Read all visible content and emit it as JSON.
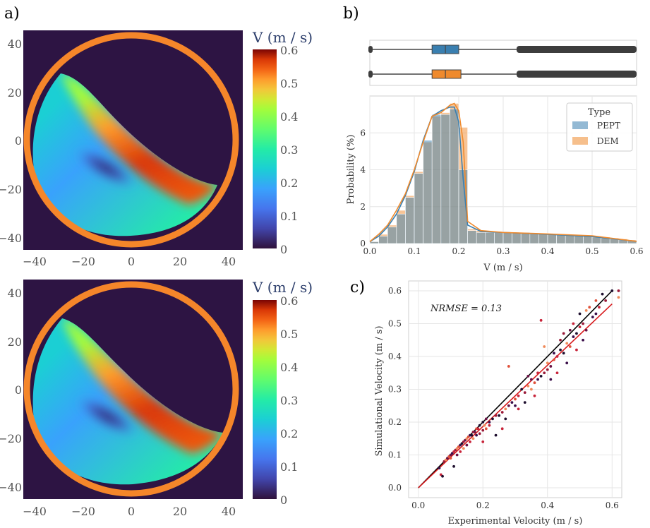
{
  "panel_labels": {
    "a": "a)",
    "b": "b)",
    "c": "c)"
  },
  "colors": {
    "pept": "#3a7fb0",
    "dem": "#ef8a2d",
    "ring": "#f5862a",
    "background": "#2d1443",
    "fit_red": "#d7191c",
    "identity_black": "#000000"
  },
  "chart_data": [
    {
      "type": "heatmap",
      "name": "PEPT velocity field (top map)",
      "x_ticks": [
        "−40",
        "−20",
        "0",
        "20",
        "40"
      ],
      "y_ticks": [
        "40",
        "20",
        "0",
        "−20",
        "−40"
      ],
      "xlim": [
        -45,
        45
      ],
      "ylim": [
        -45,
        45
      ],
      "colorbar": {
        "label": "V (m / s)",
        "range": [
          0,
          0.6
        ],
        "ticks": [
          "0.6",
          "0.5",
          "0.4",
          "0.3",
          "0.2",
          "0.1",
          "0"
        ]
      }
    },
    {
      "type": "heatmap",
      "name": "DEM velocity field (bottom map)",
      "x_ticks": [
        "−40",
        "−20",
        "0",
        "20",
        "40"
      ],
      "y_ticks": [
        "40",
        "20",
        "0",
        "−20",
        "−40"
      ],
      "xlim": [
        -45,
        45
      ],
      "ylim": [
        -45,
        45
      ],
      "colorbar": {
        "label": "V (m / s)",
        "range": [
          0,
          0.6
        ],
        "ticks": [
          "0.6",
          "0.5",
          "0.4",
          "0.3",
          "0.2",
          "0.1",
          "0"
        ]
      }
    },
    {
      "type": "bar",
      "name": "Velocity distribution histogram",
      "xlabel": "V (m / s)",
      "ylabel": "Probability (%)",
      "xlim": [
        0,
        0.6
      ],
      "ylim": [
        0,
        8
      ],
      "x_ticks": [
        "0.0",
        "0.1",
        "0.2",
        "0.3",
        "0.4",
        "0.5",
        "0.6"
      ],
      "y_ticks": [
        "0",
        "2",
        "4",
        "6"
      ],
      "bin_width": 0.02,
      "bin_starts": [
        0.0,
        0.02,
        0.04,
        0.06,
        0.08,
        0.1,
        0.12,
        0.14,
        0.16,
        0.18,
        0.2,
        0.22,
        0.24,
        0.26,
        0.28,
        0.3,
        0.32,
        0.34,
        0.36,
        0.38,
        0.4,
        0.42,
        0.44,
        0.46,
        0.48,
        0.5,
        0.52,
        0.54,
        0.56,
        0.58
      ],
      "series": [
        {
          "name": "PEPT",
          "values": [
            0.1,
            0.4,
            0.9,
            1.6,
            2.5,
            3.8,
            5.6,
            7.0,
            7.0,
            7.3,
            4.0,
            0.7,
            0.6,
            0.6,
            0.6,
            0.6,
            0.6,
            0.6,
            0.55,
            0.55,
            0.5,
            0.5,
            0.45,
            0.45,
            0.4,
            0.35,
            0.3,
            0.25,
            0.2,
            0.15
          ]
        },
        {
          "name": "DEM",
          "values": [
            0.1,
            0.5,
            1.0,
            1.8,
            2.6,
            3.9,
            5.5,
            6.9,
            7.1,
            7.6,
            6.3,
            0.8,
            0.7,
            0.6,
            0.6,
            0.6,
            0.6,
            0.55,
            0.55,
            0.55,
            0.5,
            0.5,
            0.45,
            0.45,
            0.4,
            0.4,
            0.35,
            0.3,
            0.25,
            0.2
          ]
        }
      ],
      "kde": [
        {
          "name": "PEPT",
          "x": [
            0.0,
            0.02,
            0.04,
            0.06,
            0.08,
            0.1,
            0.12,
            0.14,
            0.16,
            0.18,
            0.19,
            0.2,
            0.21,
            0.22,
            0.25,
            0.3,
            0.4,
            0.5,
            0.6
          ],
          "y": [
            0.1,
            0.4,
            0.9,
            1.6,
            2.6,
            3.9,
            5.6,
            6.9,
            7.2,
            7.4,
            7.4,
            6.6,
            3.5,
            1.0,
            0.65,
            0.6,
            0.5,
            0.38,
            0.12
          ]
        },
        {
          "name": "DEM",
          "x": [
            0.0,
            0.02,
            0.04,
            0.06,
            0.08,
            0.1,
            0.12,
            0.14,
            0.16,
            0.18,
            0.19,
            0.2,
            0.21,
            0.22,
            0.25,
            0.3,
            0.4,
            0.5,
            0.6
          ],
          "y": [
            0.1,
            0.5,
            1.0,
            1.8,
            2.7,
            4.0,
            5.5,
            6.9,
            7.1,
            7.5,
            7.6,
            7.2,
            5.5,
            1.2,
            0.7,
            0.6,
            0.52,
            0.42,
            0.12
          ]
        }
      ],
      "legend": {
        "title": "Type",
        "entries": [
          "PEPT",
          "DEM"
        ],
        "placement": "top-right"
      },
      "boxplots": [
        {
          "name": "PEPT",
          "q1": 0.14,
          "median": 0.17,
          "q3": 0.2,
          "whisker_low": 0.0,
          "whisker_high": 0.33,
          "outliers_from": 0.33,
          "outliers_to": 0.6
        },
        {
          "name": "DEM",
          "q1": 0.14,
          "median": 0.17,
          "q3": 0.205,
          "whisker_low": 0.0,
          "whisker_high": 0.33,
          "outliers_from": 0.33,
          "outliers_to": 0.6
        }
      ]
    },
    {
      "type": "scatter",
      "name": "Simulational vs experimental velocity",
      "xlabel": "Experimental Velocity (m / s)",
      "ylabel": "Simulational Velocity (m / s)",
      "xlim": [
        -0.03,
        0.63
      ],
      "ylim": [
        -0.03,
        0.63
      ],
      "x_ticks": [
        "0.0",
        "0.2",
        "0.4",
        "0.6"
      ],
      "y_ticks": [
        "0.0",
        "0.1",
        "0.2",
        "0.3",
        "0.4",
        "0.5",
        "0.6"
      ],
      "annotation": "NRMSE = 0.13",
      "identity_line": {
        "x": [
          0.0,
          0.6
        ],
        "y": [
          0.0,
          0.6
        ]
      },
      "fit_line": {
        "x": [
          0.0,
          0.6
        ],
        "y": [
          0.0,
          0.56
        ]
      },
      "points": [
        [
          0.065,
          0.06
        ],
        [
          0.07,
          0.04
        ],
        [
          0.075,
          0.035
        ],
        [
          0.08,
          0.08
        ],
        [
          0.085,
          0.085
        ],
        [
          0.09,
          0.09
        ],
        [
          0.095,
          0.095
        ],
        [
          0.1,
          0.1
        ],
        [
          0.1,
          0.09
        ],
        [
          0.105,
          0.105
        ],
        [
          0.11,
          0.11
        ],
        [
          0.11,
          0.065
        ],
        [
          0.115,
          0.115
        ],
        [
          0.12,
          0.12
        ],
        [
          0.12,
          0.1
        ],
        [
          0.125,
          0.125
        ],
        [
          0.13,
          0.13
        ],
        [
          0.13,
          0.11
        ],
        [
          0.135,
          0.135
        ],
        [
          0.14,
          0.14
        ],
        [
          0.14,
          0.12
        ],
        [
          0.145,
          0.145
        ],
        [
          0.15,
          0.15
        ],
        [
          0.15,
          0.13
        ],
        [
          0.155,
          0.155
        ],
        [
          0.16,
          0.16
        ],
        [
          0.16,
          0.14
        ],
        [
          0.165,
          0.16
        ],
        [
          0.17,
          0.17
        ],
        [
          0.17,
          0.15
        ],
        [
          0.175,
          0.17
        ],
        [
          0.18,
          0.18
        ],
        [
          0.18,
          0.16
        ],
        [
          0.185,
          0.18
        ],
        [
          0.19,
          0.19
        ],
        [
          0.19,
          0.165
        ],
        [
          0.2,
          0.2
        ],
        [
          0.2,
          0.175
        ],
        [
          0.205,
          0.19
        ],
        [
          0.21,
          0.21
        ],
        [
          0.21,
          0.18
        ],
        [
          0.22,
          0.2
        ],
        [
          0.22,
          0.19
        ],
        [
          0.23,
          0.21
        ],
        [
          0.24,
          0.22
        ],
        [
          0.25,
          0.22
        ],
        [
          0.26,
          0.23
        ],
        [
          0.27,
          0.24
        ],
        [
          0.28,
          0.25
        ],
        [
          0.28,
          0.37
        ],
        [
          0.29,
          0.26
        ],
        [
          0.3,
          0.27
        ],
        [
          0.3,
          0.25
        ],
        [
          0.31,
          0.28
        ],
        [
          0.32,
          0.3
        ],
        [
          0.33,
          0.29
        ],
        [
          0.34,
          0.31
        ],
        [
          0.34,
          0.34
        ],
        [
          0.35,
          0.3
        ],
        [
          0.35,
          0.33
        ],
        [
          0.36,
          0.32
        ],
        [
          0.37,
          0.33
        ],
        [
          0.37,
          0.35
        ],
        [
          0.38,
          0.34
        ],
        [
          0.39,
          0.35
        ],
        [
          0.39,
          0.43
        ],
        [
          0.4,
          0.36
        ],
        [
          0.4,
          0.38
        ],
        [
          0.41,
          0.37
        ],
        [
          0.42,
          0.39
        ],
        [
          0.42,
          0.41
        ],
        [
          0.43,
          0.4
        ],
        [
          0.44,
          0.42
        ],
        [
          0.44,
          0.45
        ],
        [
          0.45,
          0.41
        ],
        [
          0.45,
          0.47
        ],
        [
          0.46,
          0.44
        ],
        [
          0.47,
          0.48
        ],
        [
          0.47,
          0.43
        ],
        [
          0.48,
          0.46
        ],
        [
          0.48,
          0.5
        ],
        [
          0.49,
          0.47
        ],
        [
          0.5,
          0.49
        ],
        [
          0.5,
          0.53
        ],
        [
          0.51,
          0.5
        ],
        [
          0.52,
          0.54
        ],
        [
          0.52,
          0.48
        ],
        [
          0.53,
          0.55
        ],
        [
          0.54,
          0.52
        ],
        [
          0.55,
          0.57
        ],
        [
          0.55,
          0.53
        ],
        [
          0.56,
          0.55
        ],
        [
          0.57,
          0.59
        ],
        [
          0.58,
          0.57
        ],
        [
          0.6,
          0.6
        ],
        [
          0.62,
          0.6
        ],
        [
          0.62,
          0.58
        ],
        [
          0.38,
          0.51
        ],
        [
          0.2,
          0.14
        ],
        [
          0.24,
          0.16
        ],
        [
          0.26,
          0.18
        ],
        [
          0.27,
          0.21
        ],
        [
          0.31,
          0.24
        ],
        [
          0.33,
          0.26
        ],
        [
          0.36,
          0.28
        ],
        [
          0.41,
          0.33
        ],
        [
          0.43,
          0.35
        ],
        [
          0.46,
          0.38
        ],
        [
          0.49,
          0.42
        ],
        [
          0.51,
          0.45
        ]
      ]
    }
  ]
}
